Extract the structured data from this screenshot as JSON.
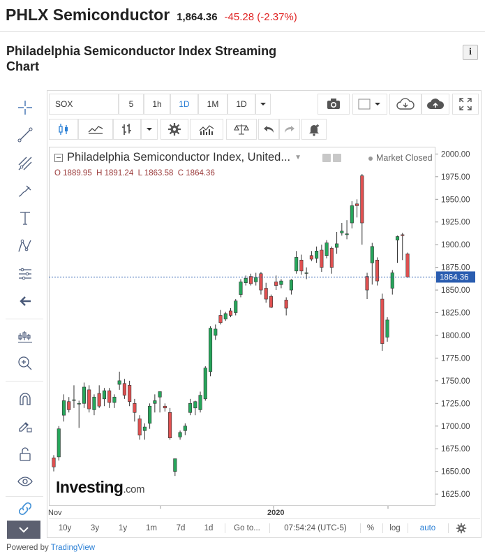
{
  "header": {
    "name": "PHLX Semiconductor",
    "last": "1,864.36",
    "change": "-45.28 (-2.37%)"
  },
  "page": {
    "subtitle": "Philadelphia Semiconductor Index Streaming Chart",
    "info_icon": "i"
  },
  "toolbar": {
    "symbol": "SOX",
    "intervals": [
      "5",
      "1h",
      "1D",
      "1M",
      "1D"
    ],
    "active_interval": "1D",
    "icons": [
      "camera-icon",
      "color-swatch-icon",
      "cloud-download-icon",
      "cloud-upload-icon",
      "fullscreen-icon",
      "candles-icon",
      "area-icon",
      "bars-icon",
      "gear-icon",
      "indicators-icon",
      "compare-icon",
      "undo-icon",
      "redo-icon",
      "alert-icon"
    ]
  },
  "left_tools": [
    "crosshair-icon",
    "trendline-icon",
    "pitchfork-icon",
    "brush-icon",
    "text-icon",
    "pattern-icon",
    "measure-icon",
    "back-arrow-icon",
    "bar-pattern-icon",
    "zoom-icon",
    "magnet-icon",
    "lock-pencil-icon",
    "unlock-icon",
    "eye-icon",
    "link-icon",
    "chevron-down-icon"
  ],
  "legend": {
    "title": "Philadelphia Semiconductor Index, United...",
    "status": "Market Closed",
    "o_label": "O",
    "o": "1889.95",
    "h_label": "H",
    "h": "1891.24",
    "l_label": "L",
    "l": "1863.58",
    "c_label": "C",
    "c": "1864.36"
  },
  "watermark": {
    "brand": "Investing",
    "suffix": ".com"
  },
  "bottom_bar": {
    "ranges": [
      "10y",
      "3y",
      "1y",
      "1m",
      "7d",
      "1d",
      "Go to..."
    ],
    "time": "07:54:24 (UTC-5)",
    "options": [
      "%",
      "log",
      "auto"
    ],
    "active_option": "auto"
  },
  "footer": {
    "prefix": "Powered by",
    "brand": "TradingView"
  },
  "chart_data": {
    "type": "candlestick",
    "title": "Philadelphia Semiconductor Index, United...",
    "ylim": [
      1612,
      2008
    ],
    "y_ticks": [
      1625,
      1650,
      1675,
      1700,
      1725,
      1750,
      1775,
      1800,
      1825,
      1850,
      1875,
      1900,
      1925,
      1950,
      1975,
      2000
    ],
    "x_tick_labels": [
      "Nov",
      "2020"
    ],
    "current_value": 1864.36,
    "current_label": "1864.36",
    "colors": {
      "up": "#26a65b",
      "down": "#e05050",
      "price_line": "#2a5db0"
    },
    "candles": [
      {
        "o": 1665,
        "h": 1668,
        "l": 1650,
        "c": 1655
      },
      {
        "o": 1666,
        "h": 1700,
        "l": 1662,
        "c": 1697
      },
      {
        "o": 1712,
        "h": 1735,
        "l": 1705,
        "c": 1728
      },
      {
        "o": 1727,
        "h": 1732,
        "l": 1715,
        "c": 1718
      },
      {
        "o": 1729,
        "h": 1745,
        "l": 1720,
        "c": 1729
      },
      {
        "o": 1725,
        "h": 1728,
        "l": 1698,
        "c": 1725
      },
      {
        "o": 1725,
        "h": 1748,
        "l": 1720,
        "c": 1743
      },
      {
        "o": 1740,
        "h": 1745,
        "l": 1715,
        "c": 1719
      },
      {
        "o": 1718,
        "h": 1735,
        "l": 1712,
        "c": 1732
      },
      {
        "o": 1736,
        "h": 1745,
        "l": 1720,
        "c": 1722
      },
      {
        "o": 1730,
        "h": 1742,
        "l": 1722,
        "c": 1739
      },
      {
        "o": 1739,
        "h": 1742,
        "l": 1720,
        "c": 1726
      },
      {
        "o": 1726,
        "h": 1735,
        "l": 1720,
        "c": 1732
      },
      {
        "o": 1746,
        "h": 1760,
        "l": 1740,
        "c": 1750
      },
      {
        "o": 1747,
        "h": 1752,
        "l": 1730,
        "c": 1734
      },
      {
        "o": 1745,
        "h": 1750,
        "l": 1722,
        "c": 1727
      },
      {
        "o": 1725,
        "h": 1730,
        "l": 1705,
        "c": 1715
      },
      {
        "o": 1708,
        "h": 1712,
        "l": 1685,
        "c": 1690
      },
      {
        "o": 1695,
        "h": 1703,
        "l": 1685,
        "c": 1699
      },
      {
        "o": 1703,
        "h": 1725,
        "l": 1697,
        "c": 1722
      },
      {
        "o": 1725,
        "h": 1735,
        "l": 1715,
        "c": 1728
      },
      {
        "o": 1732,
        "h": 1738,
        "l": 1715,
        "c": 1738
      },
      {
        "o": 1722,
        "h": 1725,
        "l": 1716,
        "c": 1720
      },
      {
        "o": 1715,
        "h": 1720,
        "l": 1685,
        "c": 1687
      },
      {
        "o": 1650,
        "h": 1663,
        "l": 1645,
        "c": 1664
      },
      {
        "o": 1688,
        "h": 1695,
        "l": 1685,
        "c": 1693
      },
      {
        "o": 1695,
        "h": 1703,
        "l": 1690,
        "c": 1700
      },
      {
        "o": 1715,
        "h": 1730,
        "l": 1712,
        "c": 1725
      },
      {
        "o": 1720,
        "h": 1728,
        "l": 1712,
        "c": 1727
      },
      {
        "o": 1718,
        "h": 1738,
        "l": 1715,
        "c": 1734
      },
      {
        "o": 1730,
        "h": 1766,
        "l": 1728,
        "c": 1764
      },
      {
        "o": 1760,
        "h": 1810,
        "l": 1755,
        "c": 1808
      },
      {
        "o": 1800,
        "h": 1812,
        "l": 1795,
        "c": 1807
      },
      {
        "o": 1822,
        "h": 1828,
        "l": 1812,
        "c": 1814
      },
      {
        "o": 1818,
        "h": 1826,
        "l": 1816,
        "c": 1824
      },
      {
        "o": 1827,
        "h": 1830,
        "l": 1820,
        "c": 1822
      },
      {
        "o": 1825,
        "h": 1840,
        "l": 1822,
        "c": 1838
      },
      {
        "o": 1845,
        "h": 1862,
        "l": 1842,
        "c": 1859
      },
      {
        "o": 1858,
        "h": 1866,
        "l": 1855,
        "c": 1863
      },
      {
        "o": 1865,
        "h": 1868,
        "l": 1855,
        "c": 1857
      },
      {
        "o": 1859,
        "h": 1869,
        "l": 1855,
        "c": 1864
      },
      {
        "o": 1868,
        "h": 1870,
        "l": 1845,
        "c": 1850
      },
      {
        "o": 1852,
        "h": 1858,
        "l": 1836,
        "c": 1840
      },
      {
        "o": 1843,
        "h": 1845,
        "l": 1830,
        "c": 1831
      },
      {
        "o": 1859,
        "h": 1866,
        "l": 1850,
        "c": 1855
      },
      {
        "o": 1856,
        "h": 1862,
        "l": 1852,
        "c": 1860
      },
      {
        "o": 1839,
        "h": 1842,
        "l": 1822,
        "c": 1830
      },
      {
        "o": 1850,
        "h": 1862,
        "l": 1845,
        "c": 1861
      },
      {
        "o": 1871,
        "h": 1893,
        "l": 1868,
        "c": 1886
      },
      {
        "o": 1883,
        "h": 1889,
        "l": 1867,
        "c": 1871
      },
      {
        "o": 1869,
        "h": 1875,
        "l": 1862,
        "c": 1869
      },
      {
        "o": 1888,
        "h": 1893,
        "l": 1882,
        "c": 1884
      },
      {
        "o": 1885,
        "h": 1898,
        "l": 1880,
        "c": 1893
      },
      {
        "o": 1894,
        "h": 1900,
        "l": 1870,
        "c": 1875
      },
      {
        "o": 1888,
        "h": 1905,
        "l": 1885,
        "c": 1902
      },
      {
        "o": 1896,
        "h": 1898,
        "l": 1868,
        "c": 1875
      },
      {
        "o": 1897,
        "h": 1914,
        "l": 1890,
        "c": 1901
      },
      {
        "o": 1913,
        "h": 1924,
        "l": 1910,
        "c": 1915
      },
      {
        "o": 1911,
        "h": 1927,
        "l": 1906,
        "c": 1912
      },
      {
        "o": 1924,
        "h": 1948,
        "l": 1918,
        "c": 1943
      },
      {
        "o": 1945,
        "h": 1950,
        "l": 1930,
        "c": 1943
      },
      {
        "o": 1976,
        "h": 1978,
        "l": 1900,
        "c": 1924
      },
      {
        "o": 1865,
        "h": 1869,
        "l": 1840,
        "c": 1850
      },
      {
        "o": 1880,
        "h": 1902,
        "l": 1856,
        "c": 1898
      },
      {
        "o": 1883,
        "h": 1886,
        "l": 1855,
        "c": 1860
      },
      {
        "o": 1840,
        "h": 1846,
        "l": 1783,
        "c": 1791
      },
      {
        "o": 1798,
        "h": 1820,
        "l": 1793,
        "c": 1817
      },
      {
        "o": 1852,
        "h": 1872,
        "l": 1845,
        "c": 1869
      },
      {
        "o": 1905,
        "h": 1910,
        "l": 1880,
        "c": 1909
      },
      {
        "o": 1911,
        "h": 1913,
        "l": 1883,
        "c": 1910
      },
      {
        "o": 1889.95,
        "h": 1891.24,
        "l": 1863.58,
        "c": 1864.36
      }
    ]
  }
}
